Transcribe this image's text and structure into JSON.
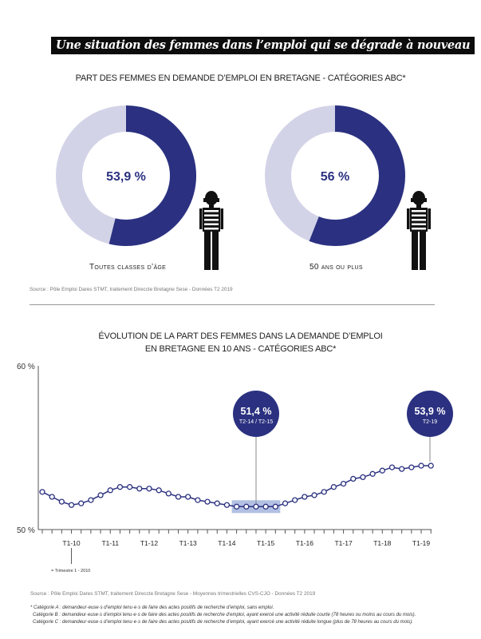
{
  "banner_title": "Une situation des femmes dans l’emploi qui se dégrade à nouveau",
  "colors": {
    "navy": "#2b3180",
    "light": "#d3d3e8",
    "highlight": "#9fb0dc"
  },
  "chart_data": [
    {
      "type": "pie",
      "variant": "donut",
      "title": "PART DES FEMMES EN DEMANDE D’EMPLOI EN BRETAGNE - CATÉGORIES ABC*",
      "charts": [
        {
          "label": "Toutes classes d’âge",
          "value": 53.9,
          "value_label": "53,9 %",
          "icon": "woman-figure-icon"
        },
        {
          "label": "50 ans ou plus",
          "value": 56,
          "value_label": "56 %",
          "icon": "woman-figure-icon"
        }
      ],
      "source": "Source : Pôle Emploi Dares STMT, traitement Direccte Bretagne Sese - Données T2 2019"
    },
    {
      "type": "line",
      "title_line1": "ÉVOLUTION DE LA PART DES FEMMES DANS LA DEMANDE D’EMPLOI",
      "title_line2": "EN BRETAGNE EN 10 ANS - CATÉGORIES ABC*",
      "ylim": [
        50,
        60
      ],
      "y_ticks": [
        "50 %",
        "60 %"
      ],
      "x_tick_labels": [
        "T1-10",
        "T1-11",
        "T1-12",
        "T1-13",
        "T1-14",
        "T1-15",
        "T1-16",
        "T1-17",
        "T1-18",
        "T1-19"
      ],
      "x_tick_note": "= Trimestre 1 - 2010",
      "values": [
        52.3,
        52.0,
        51.7,
        51.5,
        51.6,
        51.8,
        52.1,
        52.4,
        52.6,
        52.6,
        52.5,
        52.5,
        52.4,
        52.2,
        52.0,
        52.0,
        51.8,
        51.7,
        51.6,
        51.5,
        51.4,
        51.4,
        51.4,
        51.4,
        51.4,
        51.6,
        51.8,
        52.0,
        52.1,
        52.3,
        52.6,
        52.8,
        53.1,
        53.2,
        53.4,
        53.6,
        53.8,
        53.7,
        53.8,
        53.9,
        53.9
      ],
      "highlight_range": [
        "T2-14",
        "T2-15"
      ],
      "annotations": [
        {
          "value": "51,4 %",
          "period": "T2-14 / T2-15"
        },
        {
          "value": "53,9 %",
          "period": "T2-19"
        }
      ],
      "source": "Source : Pôle Emploi Dares STMT, traitement Direccte Bretagne Sese - Moyennes trimestrielles CVS-CJO - Données T2 2019"
    }
  ],
  "footnotes": [
    "* Catégorie A : demandeur·euse·s d’emploi tenu·e·s de faire des actes positifs de recherche d’emploi, sans emploi.",
    "Catégorie B : demandeur·euse·s d’emploi tenu·e·s de faire des actes positifs de recherche d’emploi, ayant exercé une activité réduite courte (78 heures ou moins au cours du mois).",
    "Catégorie C : demandeur·euse·s d’emploi tenu·e·s de faire des actes positifs de recherche d’emploi, ayant exercé une activité réduite longue (plus de 78 heures au cours du mois)."
  ]
}
